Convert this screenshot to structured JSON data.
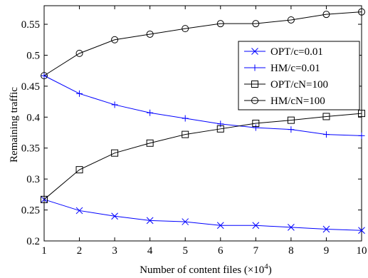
{
  "chart_data": {
    "type": "line",
    "xlabel": "Number of content files (×10",
    "xlabel_sup": "4",
    "xlabel_close": ")",
    "ylabel": "Remaining traffic",
    "xlim": [
      1,
      10
    ],
    "ylim": [
      0.2,
      0.58
    ],
    "x_ticks": [
      "1",
      "2",
      "3",
      "4",
      "5",
      "6",
      "7",
      "8",
      "9",
      "10"
    ],
    "y_ticks": [
      "0.2",
      "0.25",
      "0.3",
      "0.35",
      "0.4",
      "0.45",
      "0.5",
      "0.55"
    ],
    "grid": false,
    "legend_position": "top-right",
    "x": [
      1,
      2,
      3,
      4,
      5,
      6,
      7,
      8,
      9,
      10
    ],
    "series": [
      {
        "name": "OPT/c=0.01",
        "color": "#0000ff",
        "marker": "x",
        "values": [
          0.267,
          0.249,
          0.24,
          0.233,
          0.231,
          0.225,
          0.225,
          0.222,
          0.219,
          0.217
        ]
      },
      {
        "name": "HM/c=0.01",
        "color": "#0000ff",
        "marker": "plus",
        "values": [
          0.467,
          0.438,
          0.42,
          0.407,
          0.398,
          0.389,
          0.383,
          0.38,
          0.372,
          0.37
        ]
      },
      {
        "name": "OPT/cN=100",
        "color": "#000000",
        "marker": "square",
        "values": [
          0.267,
          0.315,
          0.342,
          0.358,
          0.372,
          0.381,
          0.39,
          0.395,
          0.401,
          0.406
        ]
      },
      {
        "name": "HM/cN=100",
        "color": "#000000",
        "marker": "circle",
        "values": [
          0.467,
          0.503,
          0.525,
          0.534,
          0.543,
          0.551,
          0.551,
          0.557,
          0.566,
          0.57
        ]
      }
    ]
  }
}
